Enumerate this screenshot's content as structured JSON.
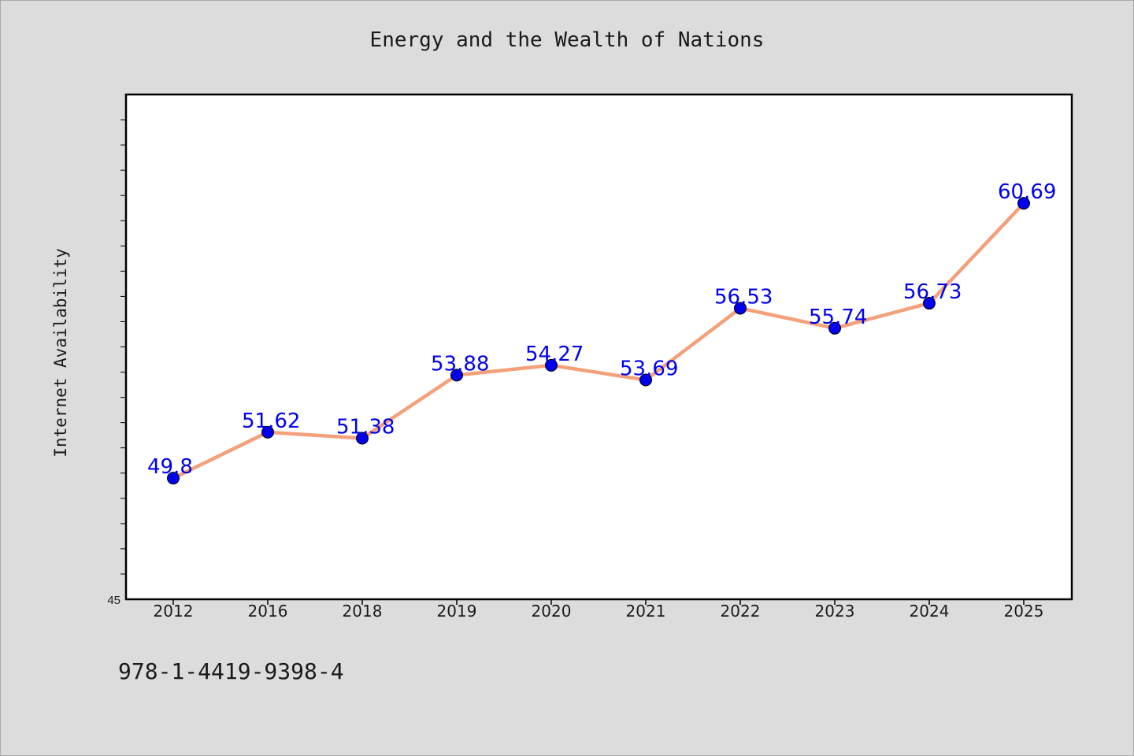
{
  "chart_data": {
    "type": "line",
    "title": "Energy and the Wealth of Nations",
    "xlabel": "",
    "ylabel": "Internet Availability",
    "categories": [
      "2012",
      "2016",
      "2018",
      "2019",
      "2020",
      "2021",
      "2022",
      "2023",
      "2024",
      "2025"
    ],
    "series": [
      {
        "values": [
          49.8,
          51.62,
          51.38,
          53.88,
          54.27,
          53.69,
          56.53,
          55.74,
          56.73,
          60.69
        ],
        "data_labels": [
          "49.8",
          "51.62",
          "51.38",
          "53.88",
          "54.27",
          "53.69",
          "56.53",
          "55.74",
          "56.73",
          "60.69"
        ],
        "line_color": "#f4a07a",
        "marker_color": "#0000ee",
        "label_color": "#0000ee"
      }
    ],
    "ylim": [
      45,
      65
    ],
    "y_tick_label": "45",
    "grid": false,
    "legend": "none"
  },
  "footer": {
    "isbn": "978-1-4419-9398-4"
  }
}
